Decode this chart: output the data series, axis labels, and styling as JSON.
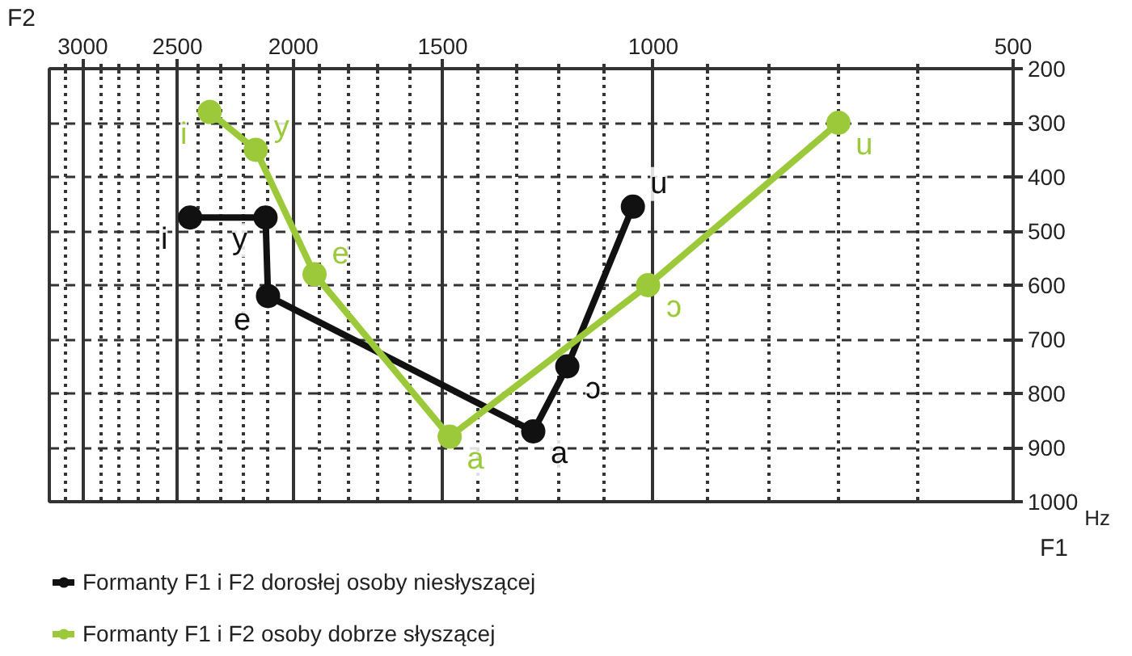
{
  "chart_data": {
    "type": "line",
    "xlabel": "F2",
    "ylabel": "F1",
    "log": "x",
    "xlim": [
      3200,
      500
    ],
    "ylim": [
      1000,
      200
    ],
    "xticks": [
      {
        "value": 3100,
        "label": null
      },
      3000,
      {
        "value": 2900,
        "label": null
      },
      {
        "value": 2800,
        "label": null
      },
      {
        "value": 2700,
        "label": null
      },
      {
        "value": 2600,
        "label": null
      },
      2500,
      {
        "value": 2400,
        "label": null
      },
      {
        "value": 2300,
        "label": null
      },
      {
        "value": 2200,
        "label": null
      },
      {
        "value": 2100,
        "label": null
      },
      2000,
      {
        "value": 1900,
        "label": null
      },
      {
        "value": 1800,
        "label": null
      },
      {
        "value": 1700,
        "label": null
      },
      {
        "value": 1600,
        "label": null
      },
      1500,
      {
        "value": 1400,
        "label": null
      },
      {
        "value": 1300,
        "label": null
      },
      {
        "value": 1200,
        "label": null
      },
      {
        "value": 1100,
        "label": null
      },
      1000,
      {
        "value": 900,
        "label": null
      },
      {
        "value": 800,
        "label": null
      },
      {
        "value": 700,
        "label": null
      },
      {
        "value": 600,
        "label": null
      },
      500
    ],
    "yticks": [
      200,
      300,
      400,
      500,
      600,
      700,
      800,
      900,
      1000
    ],
    "grid": true,
    "legend": "bottom",
    "marker": "circle",
    "line_style": "solid",
    "series": [
      {
        "name": "Formanty F1 i F2 dorosłej osoby niesłyszącej",
        "color": "#111111",
        "x": [
          2440,
          2110,
          2100,
          1260,
          1180,
          1040
        ],
        "values": [
          475,
          475,
          620,
          870,
          750,
          455
        ]
      },
      {
        "name": "Formanty F1 i F2 osoby dobrze słyszącej",
        "color": "#9bc93a",
        "x": [
          2350,
          2150,
          1920,
          1480,
          1010,
          700
        ],
        "values": [
          280,
          350,
          580,
          880,
          600,
          300
        ]
      }
    ],
    "annotations": [
      "Hz",
      {
        "text": "i",
        "x": 2440,
        "y": 475
      },
      {
        "text": "y",
        "x": 2110,
        "y": 475
      },
      {
        "text": "e",
        "x": 2100,
        "y": 620
      },
      {
        "text": "a",
        "x": 1260,
        "y": 870
      },
      {
        "text": "ɔ",
        "x": 1180,
        "y": 750
      },
      {
        "text": "u",
        "x": 1040,
        "y": 455
      },
      {
        "text": "i",
        "x": 2350,
        "y": 280
      },
      {
        "text": "y",
        "x": 2150,
        "y": 350
      },
      {
        "text": "e",
        "x": 1920,
        "y": 580
      },
      {
        "text": "a",
        "x": 1480,
        "y": 880
      },
      {
        "text": "ɔ",
        "x": 1010,
        "y": 600
      },
      {
        "text": "u",
        "x": 700,
        "y": 300
      }
    ]
  }
}
